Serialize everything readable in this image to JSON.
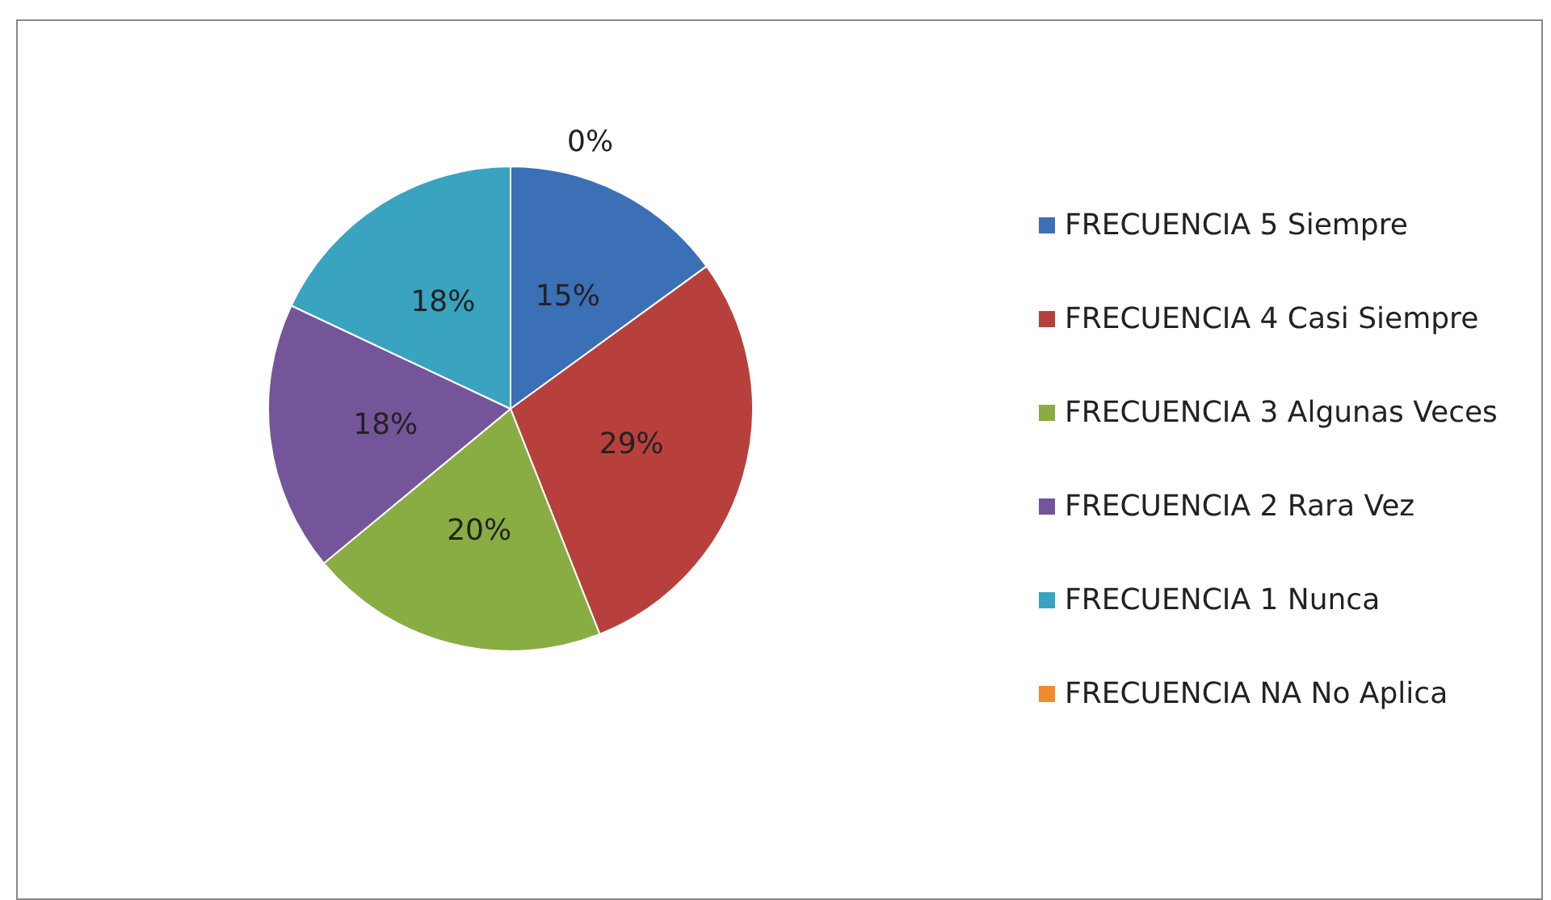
{
  "chart_data": {
    "type": "pie",
    "categories": [
      "FRECUENCIA 5 Siempre",
      "FRECUENCIA 4 Casi Siempre",
      "FRECUENCIA 3 Algunas Veces",
      "FRECUENCIA 2 Rara Vez",
      "FRECUENCIA 1 Nunca",
      "FRECUENCIA NA No Aplica"
    ],
    "values": [
      15,
      29,
      20,
      18,
      18,
      0
    ],
    "colors": [
      "#3b6fb6",
      "#b8403c",
      "#8aad43",
      "#74559a",
      "#3aa3bf",
      "#f08a2c"
    ],
    "value_labels": [
      "15%",
      "29%",
      "20%",
      "18%",
      "18%",
      "0%"
    ],
    "legend": "right"
  }
}
